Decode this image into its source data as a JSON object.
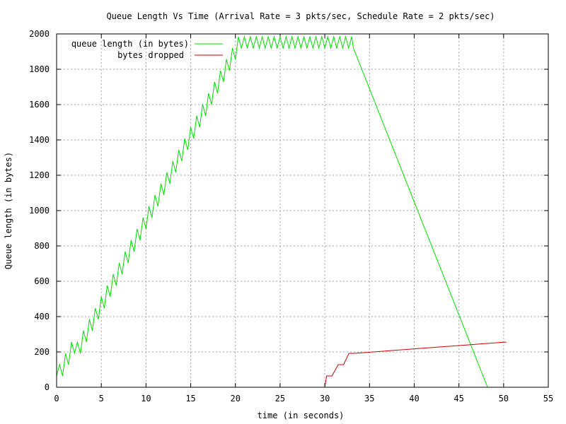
{
  "chart_data": {
    "type": "line",
    "title": "Queue Length Vs Time (Arrival Rate = 3 pkts/sec, Schedule Rate = 2 pkts/sec)",
    "xlabel": "time (in seconds)",
    "ylabel": "Queue length (in bytes)",
    "xlim": [
      0,
      55
    ],
    "ylim": [
      0,
      2000
    ],
    "xticks": [
      0,
      5,
      10,
      15,
      20,
      25,
      30,
      35,
      40,
      45,
      50,
      55
    ],
    "yticks": [
      0,
      200,
      400,
      600,
      800,
      1000,
      1200,
      1400,
      1600,
      1800,
      2000
    ],
    "grid": true,
    "legend_position": "top-left",
    "series": [
      {
        "name": "queue length (in bytes)",
        "color": "#00dd00",
        "x": [
          0.0,
          0.33,
          0.67,
          1.0,
          1.33,
          1.67,
          2.0,
          2.33,
          2.67,
          3.0,
          3.33,
          3.67,
          4.0,
          4.33,
          4.67,
          5.0,
          5.33,
          5.67,
          6.0,
          6.33,
          6.67,
          7.0,
          7.33,
          7.67,
          8.0,
          8.33,
          8.67,
          9.0,
          9.33,
          9.67,
          10.0,
          10.33,
          10.67,
          11.0,
          11.33,
          11.67,
          12.0,
          12.33,
          12.67,
          13.0,
          13.33,
          13.67,
          14.0,
          14.33,
          14.67,
          15.0,
          15.33,
          15.67,
          16.0,
          16.33,
          16.67,
          17.0,
          17.33,
          17.67,
          18.0,
          18.33,
          18.67,
          19.0,
          19.33,
          19.67,
          20.0,
          20.33,
          20.67,
          21.0,
          21.33,
          21.67,
          22.0,
          22.33,
          22.67,
          23.0,
          23.33,
          23.67,
          24.0,
          24.33,
          24.67,
          25.0,
          25.33,
          25.67,
          26.0,
          26.33,
          26.67,
          27.0,
          27.33,
          27.67,
          28.0,
          28.33,
          28.67,
          29.0,
          29.33,
          29.67,
          30.0,
          30.33,
          30.67,
          31.0,
          31.33,
          31.67,
          32.0,
          32.33,
          32.67,
          33.0,
          33.2,
          48.2
        ],
        "values": [
          64,
          128,
          64,
          192,
          128,
          256,
          192,
          256,
          192,
          320,
          256,
          384,
          320,
          448,
          384,
          512,
          448,
          576,
          512,
          640,
          576,
          704,
          640,
          768,
          704,
          832,
          768,
          896,
          832,
          960,
          896,
          1024,
          960,
          1088,
          1024,
          1152,
          1088,
          1216,
          1152,
          1280,
          1216,
          1344,
          1280,
          1408,
          1344,
          1472,
          1408,
          1536,
          1472,
          1600,
          1536,
          1664,
          1600,
          1728,
          1664,
          1792,
          1728,
          1856,
          1792,
          1920,
          1856,
          1984,
          1920,
          1984,
          1920,
          1984,
          1920,
          1984,
          1920,
          1984,
          1920,
          1984,
          1920,
          1984,
          1920,
          1984,
          1920,
          1984,
          1920,
          1984,
          1920,
          1984,
          1920,
          1984,
          1920,
          1984,
          1920,
          1984,
          1920,
          1984,
          1920,
          1984,
          1920,
          1984,
          1920,
          1984,
          1920,
          1984,
          1920,
          1984,
          1920,
          0
        ]
      },
      {
        "name": "bytes dropped",
        "color": "#cc0000",
        "x": [
          30.0,
          30.2,
          30.2,
          30.8,
          30.8,
          31.5,
          31.5,
          32.1,
          32.1,
          32.7,
          32.7,
          33.3,
          33.3,
          50.3
        ],
        "values": [
          0,
          64,
          64,
          64,
          64,
          128,
          128,
          128,
          128,
          192,
          192,
          192,
          192,
          256
        ]
      }
    ]
  }
}
